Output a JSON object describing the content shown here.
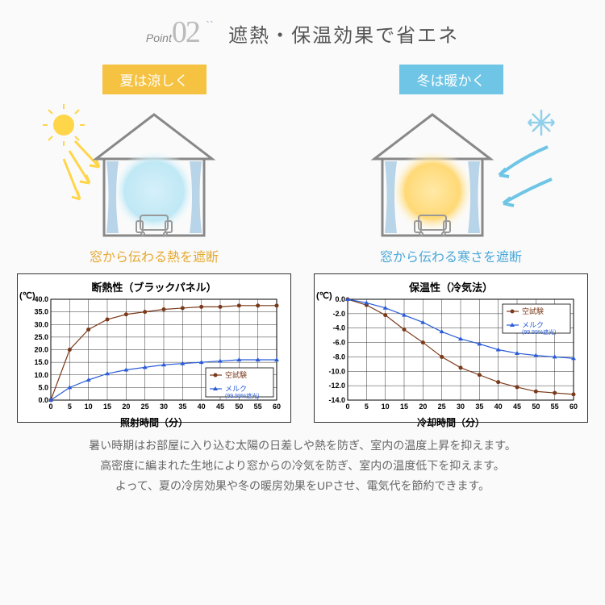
{
  "header": {
    "point_label": "Point",
    "point_num": "02",
    "title": "遮熱・保温効果で省エネ"
  },
  "summer": {
    "badge": "夏は涼しく",
    "badge_bg": "#f5c242",
    "caption": "窓から伝わる熱を遮断",
    "caption_color": "#e5a82f",
    "glow_color": "#bfe8f5",
    "glow_center": "#d5f0fa"
  },
  "winter": {
    "badge": "冬は暖かく",
    "badge_bg": "#6fc5e5",
    "caption": "窓から伝わる寒さを遮断",
    "caption_color": "#4aa8d8",
    "glow_color": "#ffd976",
    "glow_center": "#ffe9a8"
  },
  "chart1": {
    "title": "断熱性（ブラックパネル）",
    "xlabel": "照射時間（分）",
    "ylabel": "(℃)",
    "xlim": [
      0,
      60
    ],
    "xtick_step": 5,
    "ylim": [
      0,
      40
    ],
    "ytick_step": 5,
    "grid_color": "#333333",
    "series": [
      {
        "label": "空試験",
        "color": "#7a3a1a",
        "marker": "circle",
        "marker_fill": "#7a3a1a",
        "x": [
          0,
          5,
          10,
          15,
          20,
          25,
          30,
          35,
          40,
          45,
          50,
          55,
          60
        ],
        "y": [
          0,
          20,
          28,
          32,
          34,
          35,
          36,
          36.5,
          37,
          37,
          37.5,
          37.5,
          37.5
        ]
      },
      {
        "label": "メルク",
        "sublabel": "(99.99%遮光)",
        "color": "#2a5cd8",
        "marker": "triangle",
        "marker_fill": "#2a5cd8",
        "x": [
          0,
          5,
          10,
          15,
          20,
          25,
          30,
          35,
          40,
          45,
          50,
          55,
          60
        ],
        "y": [
          0,
          5,
          8,
          10.5,
          12,
          13,
          14,
          14.5,
          15,
          15.5,
          16,
          16,
          16
        ]
      }
    ],
    "legend_pos": "bottom-right"
  },
  "chart2": {
    "title": "保温性（冷気法）",
    "xlabel": "冷却時間（分）",
    "ylabel": "(℃)",
    "xlim": [
      0,
      60
    ],
    "xtick_step": 5,
    "ylim": [
      -14,
      0
    ],
    "ytick_step": 2,
    "grid_color": "#333333",
    "series": [
      {
        "label": "空試験",
        "color": "#7a3a1a",
        "marker": "circle",
        "marker_fill": "#7a3a1a",
        "x": [
          0,
          5,
          10,
          15,
          20,
          25,
          30,
          35,
          40,
          45,
          50,
          55,
          60
        ],
        "y": [
          0,
          -0.8,
          -2.2,
          -4.2,
          -6,
          -8,
          -9.5,
          -10.5,
          -11.5,
          -12.2,
          -12.8,
          -13,
          -13.2
        ]
      },
      {
        "label": "メルク",
        "sublabel": "(99.99%遮光)",
        "color": "#2a5cd8",
        "marker": "triangle",
        "marker_fill": "#2a5cd8",
        "x": [
          0,
          5,
          10,
          15,
          20,
          25,
          30,
          35,
          40,
          45,
          50,
          55,
          60
        ],
        "y": [
          0,
          -0.5,
          -1.2,
          -2.2,
          -3.2,
          -4.5,
          -5.5,
          -6.2,
          -7,
          -7.5,
          -7.8,
          -8,
          -8.2
        ]
      }
    ],
    "legend_pos": "top-right"
  },
  "footer": {
    "line1": "暑い時期はお部屋に入り込む太陽の日差しや熱を防ぎ、室内の温度上昇を抑えます。",
    "line2": "高密度に編まれた生地により窓からの冷気を防ぎ、室内の温度低下を抑えます。",
    "line3": "よって、夏の冷房効果や冬の暖房効果をUPさせ、電気代を節約できます。"
  },
  "house": {
    "outline": "#888888",
    "curtain": "#b8d4e8",
    "sofa": "#999999"
  }
}
